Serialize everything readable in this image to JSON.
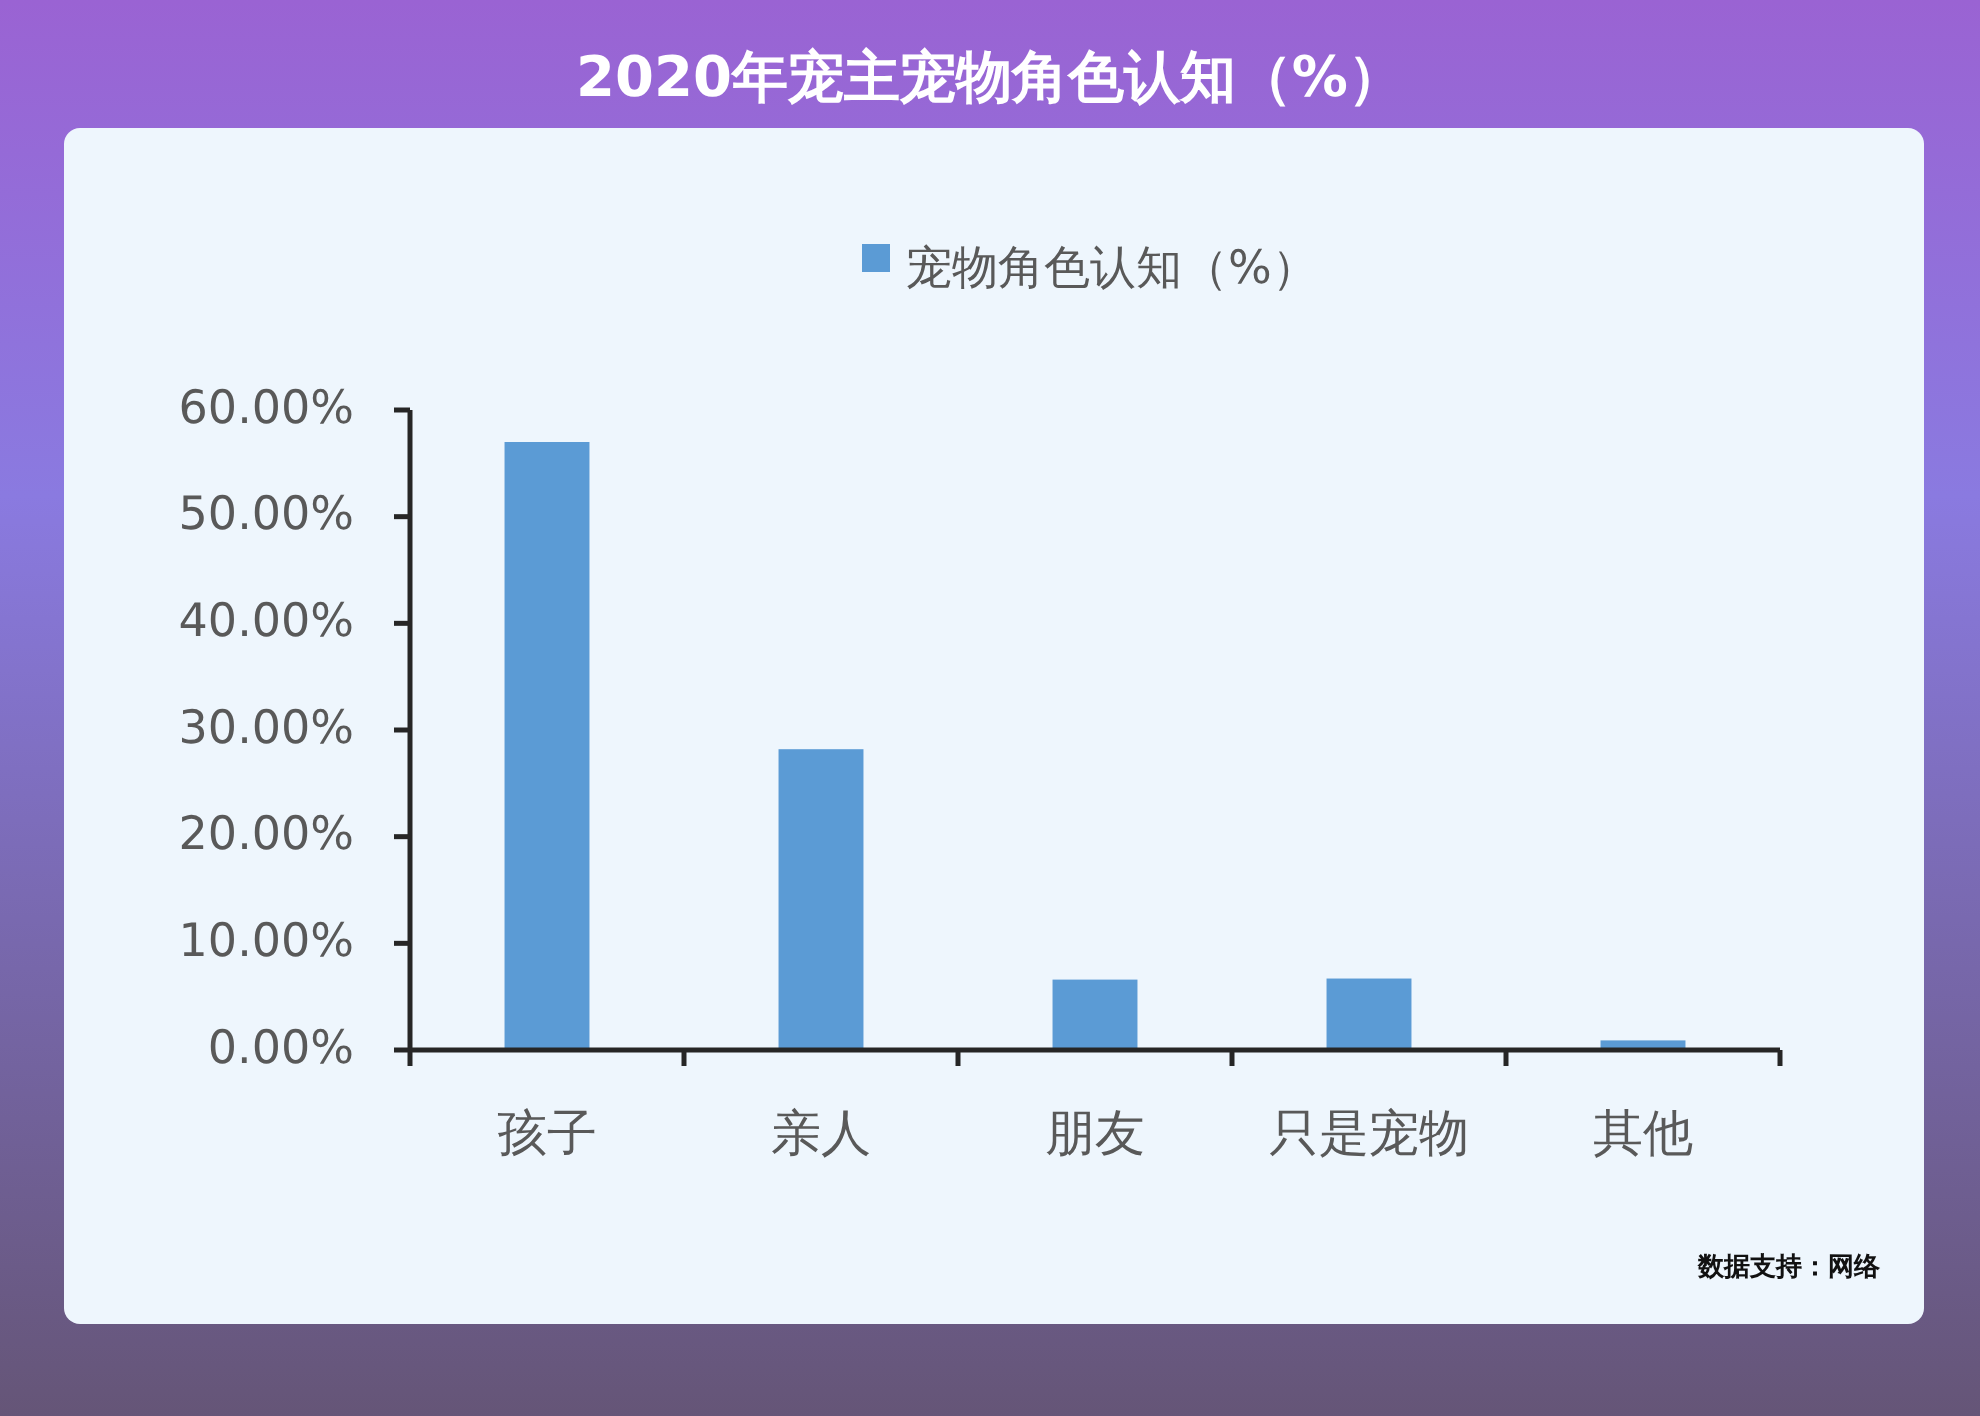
{
  "chart_data": {
    "type": "bar",
    "title": "2020年宠主宠物角色认知（%）",
    "categories": [
      "孩子",
      "亲人",
      "朋友",
      "只是宠物",
      "其他"
    ],
    "series": [
      {
        "name": "宠物角色认知（%）",
        "color": "#5b9bd5",
        "values": [
          57,
          28.2,
          6.6,
          6.7,
          0.9
        ]
      }
    ],
    "ylim": [
      0,
      60
    ],
    "yticks": [
      {
        "value": 0,
        "label": "0.00%"
      },
      {
        "value": 10,
        "label": "10.00%"
      },
      {
        "value": 20,
        "label": "20.00%"
      },
      {
        "value": 30,
        "label": "30.00%"
      },
      {
        "value": 40,
        "label": "40.00%"
      },
      {
        "value": 50,
        "label": "50.00%"
      },
      {
        "value": 60,
        "label": "60.00%"
      }
    ],
    "legend": "top",
    "annotations": [
      "数据支持：网络"
    ]
  }
}
